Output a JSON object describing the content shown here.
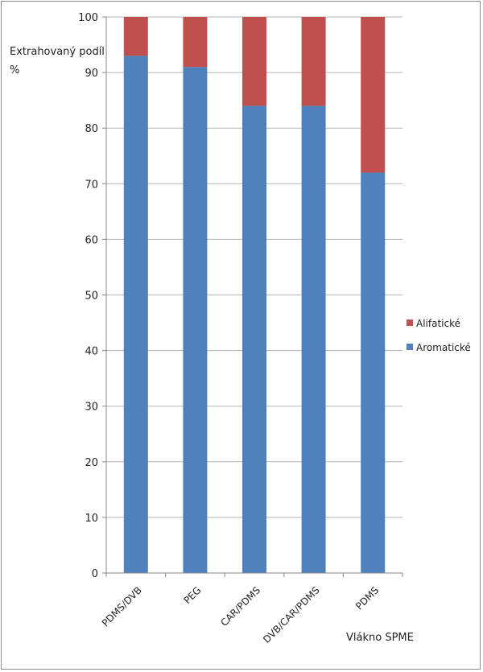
{
  "chart_data": {
    "type": "bar",
    "stacked": true,
    "title": "",
    "ylabel_line1": "Extrahovaný podíl",
    "ylabel_line2": "%",
    "xlabel": "Vlákno SPME",
    "categories": [
      "PDMS/DVB",
      "PEG",
      "CAR/PDMS",
      "DVB/CAR/PDMS",
      "PDMS"
    ],
    "series": [
      {
        "name": "Aromatické",
        "color": "#4F81BD",
        "values": [
          93,
          91,
          84,
          84,
          72
        ]
      },
      {
        "name": "Alifatické",
        "color": "#C0504D",
        "values": [
          7,
          9,
          16,
          16,
          28
        ]
      }
    ],
    "ylim": [
      0,
      100
    ],
    "yticks": [
      0,
      10,
      20,
      30,
      40,
      50,
      60,
      70,
      80,
      90,
      100
    ],
    "grid": true,
    "legend": "right"
  }
}
